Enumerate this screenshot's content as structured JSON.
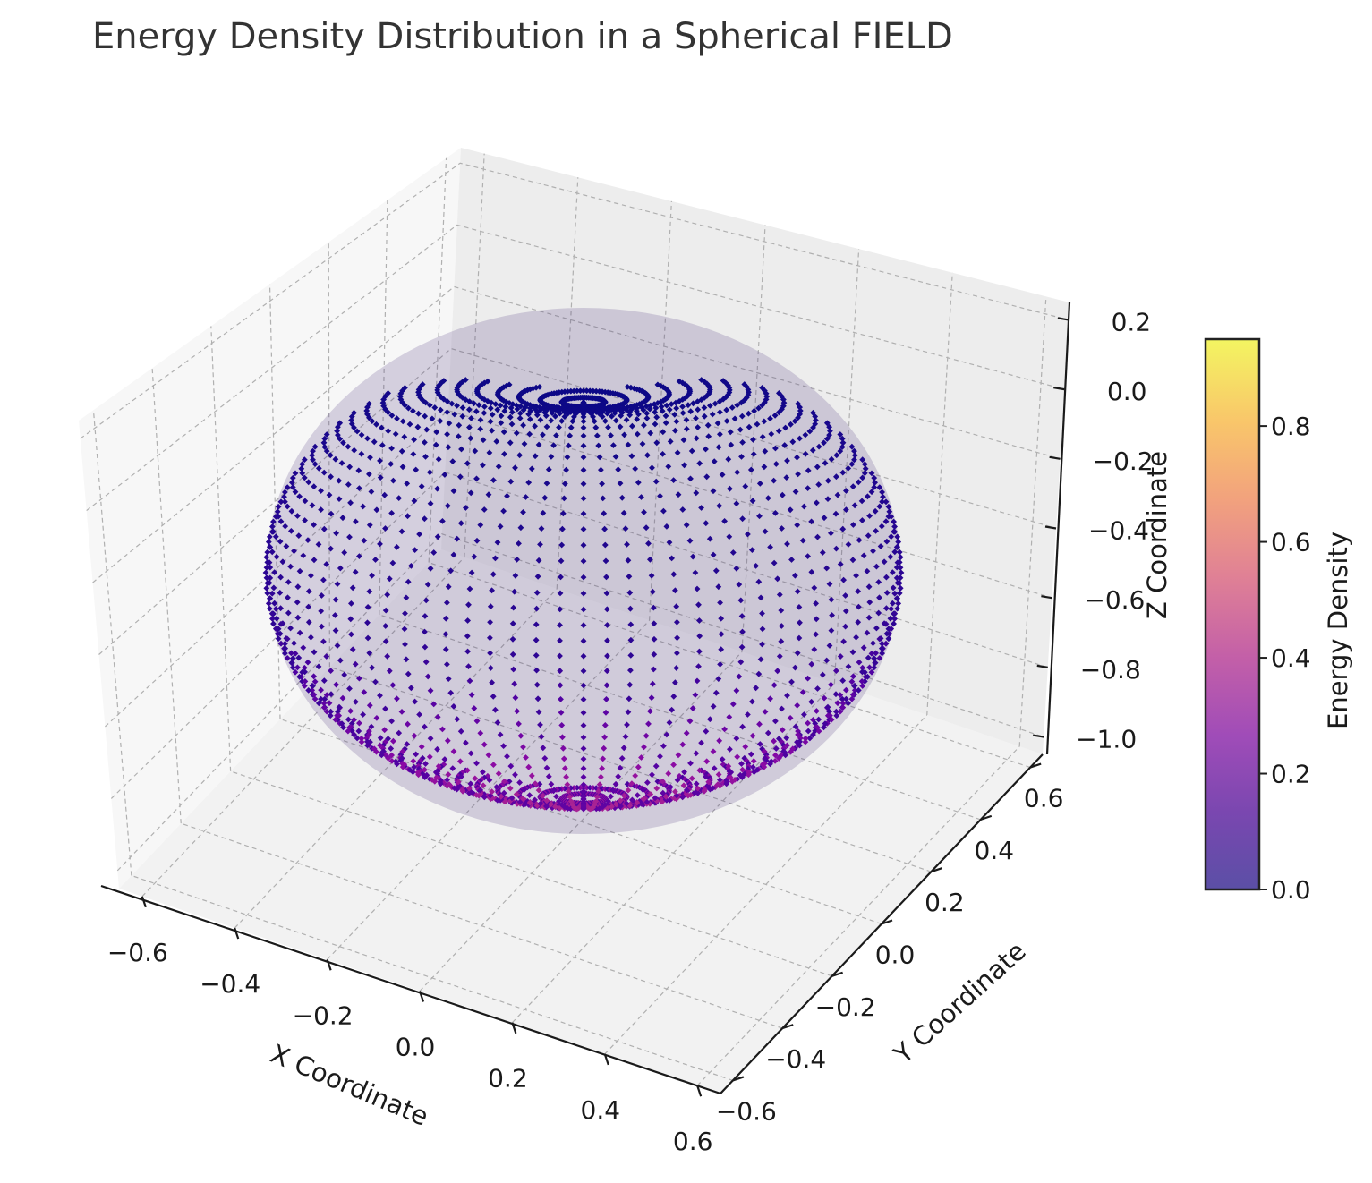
{
  "chart_data": {
    "type": "scatter",
    "projection": "3d",
    "title": "Energy Density Distribution in a Spherical FIELD",
    "xlabel": "X Coordinate",
    "ylabel": "Y Coordinate",
    "zlabel": "Z Coordinate",
    "x_ticks": [
      "−0.6",
      "−0.4",
      "−0.2",
      "0.0",
      "0.2",
      "0.4",
      "0.6"
    ],
    "y_ticks": [
      "−0.6",
      "−0.4",
      "−0.2",
      "0.0",
      "0.2",
      "0.4",
      "0.6"
    ],
    "z_ticks": [
      "0.2",
      "0.0",
      "−0.2",
      "−0.4",
      "−0.6",
      "−0.8",
      "−1.0"
    ],
    "xlim": [
      -0.65,
      0.65
    ],
    "ylim": [
      -0.65,
      0.65
    ],
    "zlim": [
      -1.05,
      0.25
    ],
    "shape": "oblate spheroid with dimple at top pole",
    "point_extent": {
      "x": [
        -0.6,
        0.6
      ],
      "y": [
        -0.6,
        0.6
      ],
      "z": [
        -1.0,
        0.2
      ]
    },
    "marker": "diamond",
    "colorbar": {
      "label": "Energy Density",
      "ticks": [
        "0.0",
        "0.2",
        "0.4",
        "0.6",
        "0.8"
      ],
      "range": [
        0.0,
        0.95
      ],
      "colormap": "plasma",
      "position": "right"
    },
    "grid": true
  }
}
